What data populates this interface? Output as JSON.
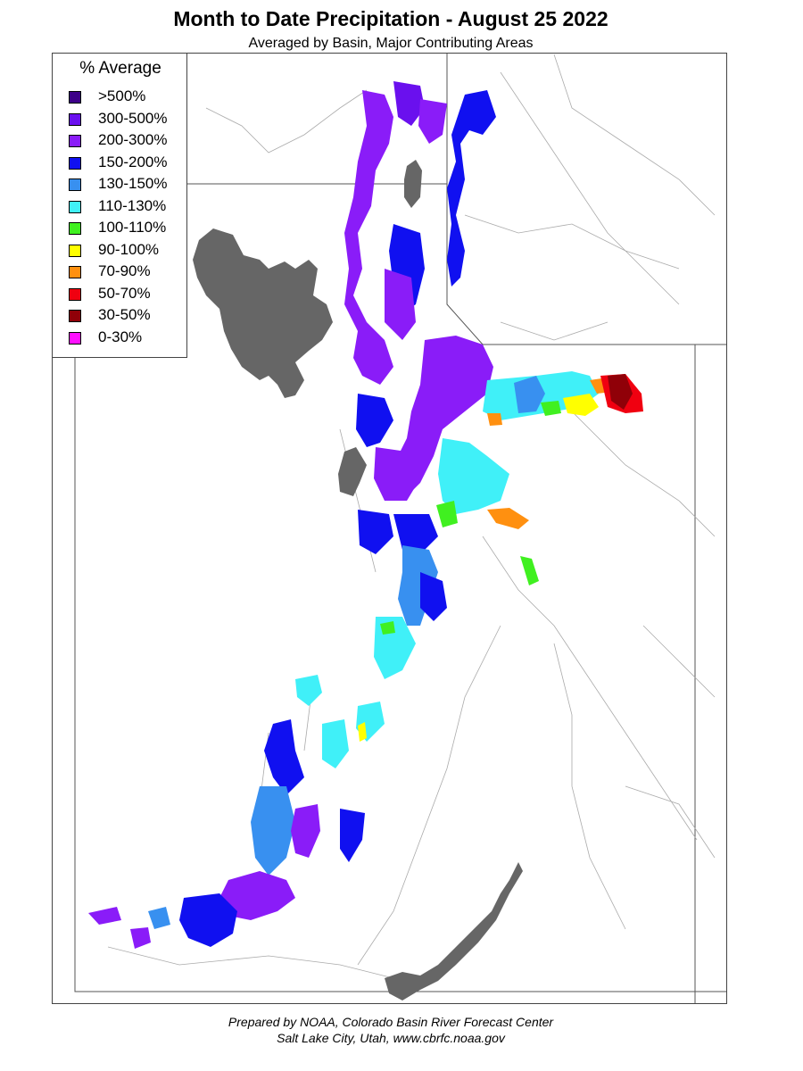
{
  "title": "Month to Date Precipitation - August 25 2022",
  "subtitle": "Averaged by Basin, Major Contributing Areas",
  "legend": {
    "title": "% Average",
    "items": [
      {
        "label": ">500%",
        "color": "#3d0088"
      },
      {
        "label": "300-500%",
        "color": "#6a10ee"
      },
      {
        "label": "200-300%",
        "color": "#8a1cf8"
      },
      {
        "label": "150-200%",
        "color": "#1010f0"
      },
      {
        "label": "130-150%",
        "color": "#3890f0"
      },
      {
        "label": "110-130%",
        "color": "#40f0f8"
      },
      {
        "label": "100-110%",
        "color": "#40f020"
      },
      {
        "label": "90-100%",
        "color": "#ffff00"
      },
      {
        "label": "70-90%",
        "color": "#ff9010"
      },
      {
        "label": "50-70%",
        "color": "#f00010"
      },
      {
        "label": "30-50%",
        "color": "#900008"
      },
      {
        "label": "0-30%",
        "color": "#ff10ff"
      }
    ]
  },
  "credit": {
    "line1": "Prepared by NOAA, Colorado Basin River Forecast Center",
    "line2": "Salt Lake City, Utah, www.cbrfc.noaa.gov"
  },
  "map": {
    "water_color": "#666666",
    "boundary_color": "#999999",
    "state_line_color": "#555555"
  }
}
